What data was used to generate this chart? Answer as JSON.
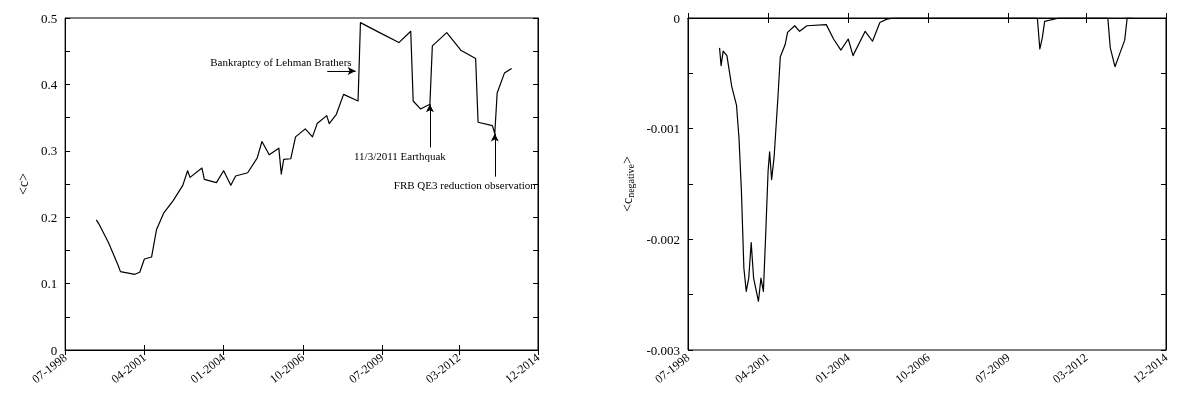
{
  "chart_data": [
    {
      "type": "line",
      "ylabel": "<c>",
      "xlim": [
        "1998-07",
        "2014-12"
      ],
      "xticks": [
        {
          "value": "1998-07",
          "label": "07-1998"
        },
        {
          "value": "2001-04",
          "label": "04-2001"
        },
        {
          "value": "2004-01",
          "label": "01-2004"
        },
        {
          "value": "2006-10",
          "label": "10-2006"
        },
        {
          "value": "2009-07",
          "label": "07-2009"
        },
        {
          "value": "2012-03",
          "label": "03-2012"
        },
        {
          "value": "2014-12",
          "label": "12-2014"
        }
      ],
      "ylim": [
        0,
        0.5
      ],
      "yticks": [
        0,
        {
          "value": 0.05,
          "label": null
        },
        0.1,
        {
          "value": 0.15,
          "label": null
        },
        0.2,
        {
          "value": 0.25,
          "label": null
        },
        0.3,
        {
          "value": 0.35,
          "label": null
        },
        0.4,
        {
          "value": 0.45,
          "label": null
        },
        0.5
      ],
      "marker": "none",
      "line_style": "solid",
      "x": [
        "1999-08",
        "1999-09",
        "2000-01",
        "2000-05",
        "2000-06",
        "2000-12",
        "2001-02",
        "2001-04",
        "2001-07",
        "2001-09",
        "2001-12",
        "2002-04",
        "2002-08",
        "2002-10",
        "2002-11",
        "2003-04",
        "2003-05",
        "2003-10",
        "2004-01",
        "2004-04",
        "2004-06",
        "2004-11",
        "2005-03",
        "2005-05",
        "2005-08",
        "2005-12",
        "2006-01",
        "2006-02",
        "2006-05",
        "2006-07",
        "2006-11",
        "2007-02",
        "2007-04",
        "2007-08",
        "2007-09",
        "2007-12",
        "2008-03",
        "2008-09",
        "2008-10",
        "2009-06",
        "2010-02",
        "2010-07",
        "2010-08",
        "2010-11",
        "2011-03",
        "2011-04",
        "2011-10",
        "2012-04",
        "2012-10",
        "2012-11",
        "2013-05",
        "2013-06",
        "2013-07",
        "2013-10",
        "2014-01"
      ],
      "series": [
        {
          "color": "#000000",
          "values": [
            0.196,
            0.19,
            0.162,
            0.128,
            0.118,
            0.114,
            0.117,
            0.137,
            0.14,
            0.181,
            0.206,
            0.225,
            0.248,
            0.27,
            0.26,
            0.274,
            0.257,
            0.252,
            0.27,
            0.248,
            0.262,
            0.267,
            0.289,
            0.314,
            0.294,
            0.304,
            0.265,
            0.287,
            0.288,
            0.321,
            0.333,
            0.321,
            0.341,
            0.353,
            0.341,
            0.355,
            0.385,
            0.375,
            0.493,
            0.478,
            0.463,
            0.48,
            0.375,
            0.363,
            0.37,
            0.458,
            0.478,
            0.451,
            0.439,
            0.343,
            0.338,
            0.326,
            0.387,
            0.417,
            0.424
          ]
        }
      ],
      "annotations": [
        {
          "text": "Bankraptcy of Lehman Brathers",
          "x": "2008-08",
          "y": 0.42
        },
        {
          "text": "11/3/2011 Earthquak",
          "x": "2011-03",
          "y": 0.37
        },
        {
          "text": "FRB QE3 reduction observation",
          "x": "2013-06",
          "y": 0.326
        }
      ]
    },
    {
      "type": "line",
      "ylabel": "<c$_{negative}$>",
      "xlim": [
        "1998-07",
        "2014-12"
      ],
      "xticks": [
        {
          "value": "1998-07",
          "label": "07-1998"
        },
        {
          "value": "2001-04",
          "label": "04-2001"
        },
        {
          "value": "2004-01",
          "label": "01-2004"
        },
        {
          "value": "2006-10",
          "label": "10-2006"
        },
        {
          "value": "2009-07",
          "label": "07-2009"
        },
        {
          "value": "2012-03",
          "label": "03-2012"
        },
        {
          "value": "2014-12",
          "label": "12-2014"
        }
      ],
      "ylim": [
        -0.003,
        0
      ],
      "yticks": [
        -0.003,
        {
          "value": -0.0025,
          "label": null
        },
        -0.002,
        {
          "value": -0.0015,
          "label": null
        },
        -0.001,
        {
          "value": -0.0005,
          "label": null
        },
        0
      ],
      "marker": "none",
      "line_style": "solid",
      "x": [
        "1999-08-01",
        "1999-08-20",
        "1999-09-15",
        "1999-11-01",
        "2000-01-01",
        "2000-03-01",
        "2000-04-01",
        "2000-05-01",
        "2000-06-01",
        "2000-07-01",
        "2000-08-01",
        "2000-09-01",
        "2000-10-01",
        "2000-12-01",
        "2001-01-01",
        "2001-02-01",
        "2001-03-01",
        "2001-04-01",
        "2001-04-20",
        "2001-05-15",
        "2001-06-15",
        "2001-08-01",
        "2001-09-01",
        "2001-11-01",
        "2001-12-01",
        "2002-03-01",
        "2002-05-01",
        "2002-08-01",
        "2003-04-01",
        "2003-07-01",
        "2003-10-01",
        "2004-01-01",
        "2004-03-01",
        "2004-08-01",
        "2004-11-01",
        "2005-02-01",
        "2005-05-01",
        "2005-08-01",
        "2010-07-01",
        "2010-08-01",
        "2010-09-01",
        "2010-10-01",
        "2011-04-01",
        "2012-12-01",
        "2013-01-01",
        "2013-03-01",
        "2013-05-01",
        "2013-07-01",
        "2013-08-01",
        "2013-10-01"
      ],
      "series": [
        {
          "color": "#000000",
          "values": [
            -0.00027,
            -0.00043,
            -0.0003,
            -0.00034,
            -0.00062,
            -0.00079,
            -0.00109,
            -0.00156,
            -0.00226,
            -0.00247,
            -0.00235,
            -0.00203,
            -0.00235,
            -0.00256,
            -0.00235,
            -0.00247,
            -0.00197,
            -0.00138,
            -0.00121,
            -0.00146,
            -0.00126,
            -0.00073,
            -0.00035,
            -0.00024,
            -0.00013,
            -7e-05,
            -0.00012,
            -7e-05,
            -6e-05,
            -0.00019,
            -0.00029,
            -0.00019,
            -0.00034,
            -0.00012,
            -0.00021,
            -4e-05,
            -1e-05,
            0,
            0,
            -0.00028,
            -0.00018,
            -3e-05,
            0,
            0,
            -0.00027,
            -0.00044,
            -0.00032,
            -0.0002,
            0,
            0
          ]
        }
      ]
    }
  ]
}
